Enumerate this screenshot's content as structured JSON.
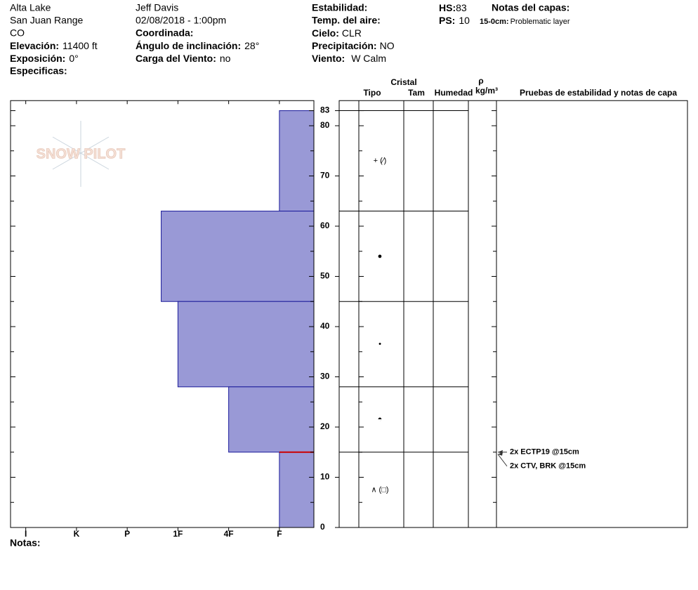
{
  "header": {
    "location": "Alta Lake",
    "range": "San Juan Range",
    "state": "CO",
    "elevation_label": "Elevación:",
    "elevation": "11400 ft",
    "aspect_label": "Exposición:",
    "aspect": "0°",
    "specifics_label": "Especificas:",
    "observer": "Jeff Davis",
    "datetime": "02/08/2018 - 1:00pm",
    "coordinates_label": "Coordinada:",
    "slope_label": "Ángulo de inclinación:",
    "slope": "28°",
    "wind_loading_label": "Carga del Viento:",
    "wind_loading": "no",
    "stability_label": "Estabilidad:",
    "air_temp_label": "Temp. del aire:",
    "sky_label": "Cielo:",
    "sky": "CLR",
    "precip_label": "Precipitación:",
    "precip": "NO",
    "wind_label": "Viento:",
    "wind": "W Calm",
    "hs_label": "HS:",
    "hs": 83,
    "ps_label": "PS:",
    "ps": 10,
    "layer_notes_label": "Notas del capas:",
    "layer_note_range": "15-0cm:",
    "layer_note": "Problematic layer"
  },
  "logo": "SNOW PILOT",
  "notes_label": "Notas:",
  "table_headers": {
    "crystal": "Cristal",
    "type": "Tipo",
    "size": "Tam",
    "moisture": "Humedad",
    "rho": "ρ",
    "density_unit": "kg/m³",
    "tests": "Pruebas de estabilidad y notas de capa"
  },
  "chart_data": {
    "type": "hardness-profile",
    "layers": [
      {
        "top": 83,
        "bottom": 63,
        "hardness": 1,
        "grain_type": "+ (⁄)"
      },
      {
        "top": 63,
        "bottom": 45,
        "hardness": 3.33,
        "grain_type": "●"
      },
      {
        "top": 45,
        "bottom": 28,
        "hardness": 3,
        "grain_type": "•"
      },
      {
        "top": 28,
        "bottom": 15,
        "hardness": 2,
        "grain_type": "◓"
      },
      {
        "top": 15,
        "bottom": 0,
        "hardness": 1,
        "grain_type": "∧ (□)"
      }
    ],
    "bar_color": "#9999d6",
    "bar_edge_color": "#1a1a9a",
    "critical_depth": 15,
    "critical_color": "#cc0000",
    "xlim": [
      6.3,
      0.32
    ],
    "xticks": [
      {
        "value": 6,
        "label": "I"
      },
      {
        "value": 5,
        "label": "K"
      },
      {
        "value": 4,
        "label": "P"
      },
      {
        "value": 3,
        "label": "1F"
      },
      {
        "value": 2,
        "label": "4F"
      },
      {
        "value": 1,
        "label": "F"
      }
    ],
    "ylim": [
      0,
      85
    ],
    "yticks": [
      0,
      10,
      20,
      30,
      40,
      50,
      60,
      70,
      80,
      83
    ],
    "minor_yticks": [
      5,
      15,
      25,
      35,
      45,
      55,
      65,
      75
    ],
    "stability_tests": [
      {
        "text": "2x ECTP19 @15cm",
        "depth": 15
      },
      {
        "text": "2x CTV, BRK @15cm",
        "depth": 15
      }
    ]
  }
}
